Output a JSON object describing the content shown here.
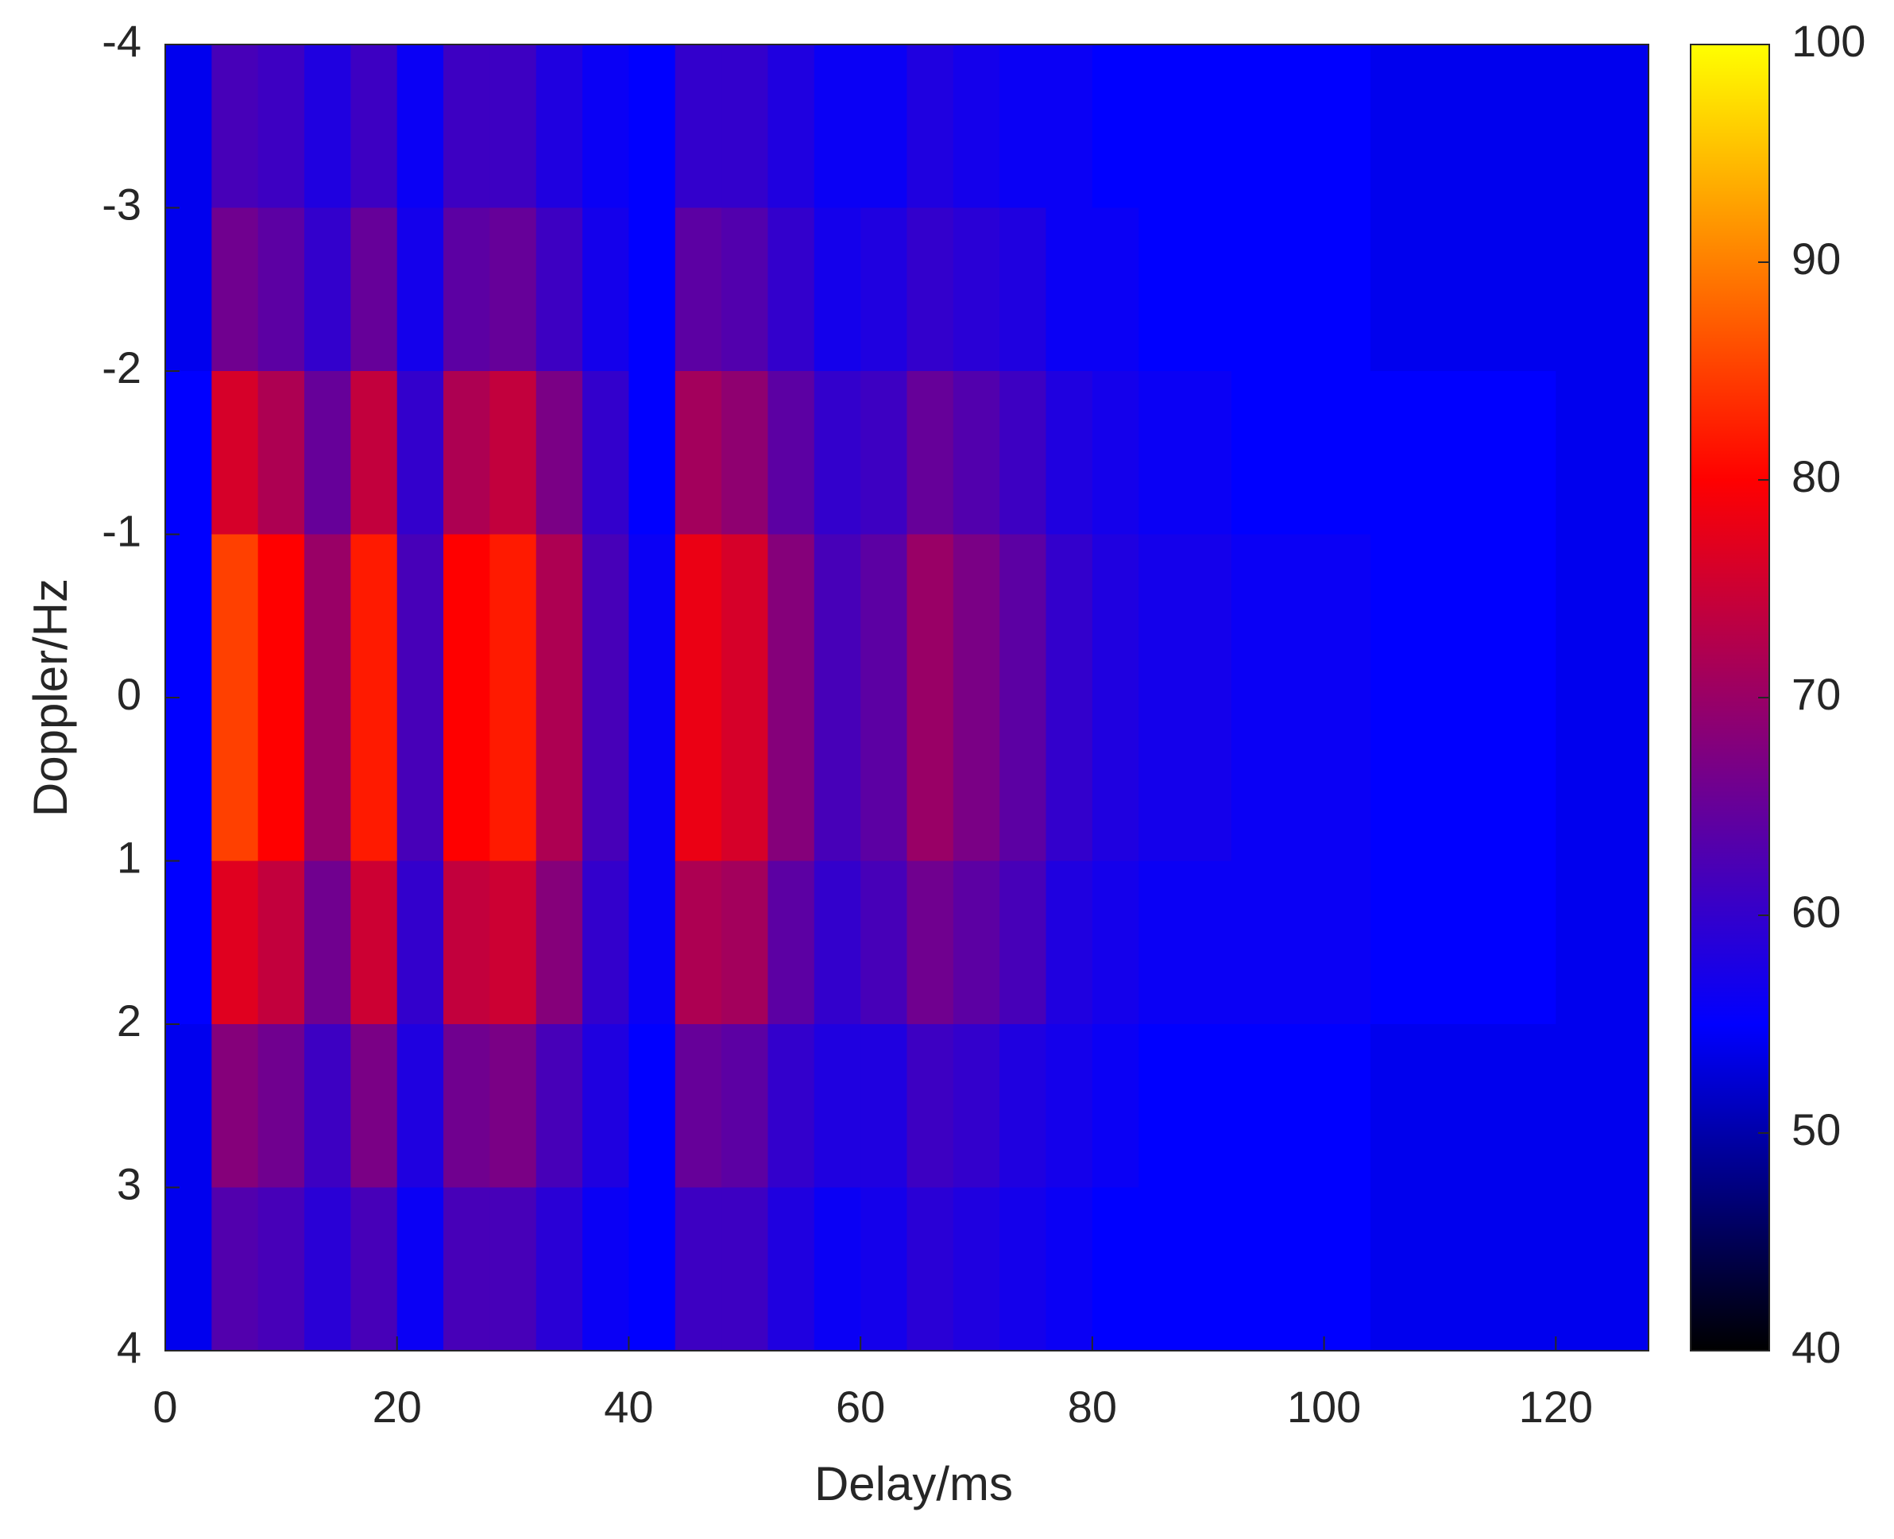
{
  "chart_data": {
    "type": "heatmap",
    "xlabel": "Delay/ms",
    "ylabel": "Doppler/Hz",
    "x_edges": [
      0,
      4,
      8,
      12,
      16,
      20,
      24,
      28,
      32,
      36,
      40,
      44,
      48,
      52,
      56,
      60,
      64,
      68,
      72,
      76,
      80,
      84,
      88,
      92,
      96,
      100,
      104,
      108,
      112,
      116,
      120,
      124,
      128
    ],
    "y_edges": [
      -4,
      -3,
      -2,
      -1,
      0,
      1,
      2,
      3,
      4
    ],
    "z": [
      [
        54,
        54,
        55,
        55,
        55,
        55,
        54,
        54
      ],
      [
        62,
        66,
        76,
        85,
        85,
        77,
        68,
        63
      ],
      [
        61,
        64,
        72,
        80,
        80,
        74,
        66,
        62
      ],
      [
        58,
        60,
        65,
        70,
        70,
        66,
        61,
        59
      ],
      [
        61,
        65,
        74,
        82,
        82,
        75,
        67,
        62
      ],
      [
        56,
        57,
        60,
        62,
        62,
        60,
        58,
        56
      ],
      [
        61,
        64,
        72,
        80,
        80,
        74,
        66,
        62
      ],
      [
        61,
        65,
        74,
        82,
        82,
        75,
        67,
        62
      ],
      [
        58,
        61,
        67,
        72,
        72,
        68,
        62,
        59
      ],
      [
        56,
        57,
        60,
        62,
        62,
        60,
        58,
        56
      ],
      [
        55,
        55,
        55,
        56,
        56,
        56,
        55,
        55
      ],
      [
        60,
        64,
        71,
        78,
        78,
        72,
        65,
        61
      ],
      [
        60,
        63,
        69,
        76,
        76,
        71,
        64,
        61
      ],
      [
        58,
        60,
        64,
        68,
        68,
        64,
        60,
        58
      ],
      [
        56,
        57,
        60,
        62,
        62,
        60,
        58,
        56
      ],
      [
        56,
        58,
        61,
        64,
        64,
        62,
        58,
        57
      ],
      [
        58,
        60,
        65,
        70,
        70,
        66,
        61,
        59
      ],
      [
        57,
        59,
        63,
        67,
        67,
        64,
        60,
        58
      ],
      [
        56,
        58,
        61,
        64,
        64,
        62,
        58,
        57
      ],
      [
        56,
        56,
        58,
        60,
        60,
        58,
        57,
        56
      ],
      [
        55,
        56,
        57,
        58,
        58,
        57,
        56,
        55
      ],
      [
        55,
        55,
        56,
        57,
        57,
        56,
        55,
        55
      ],
      [
        55,
        55,
        56,
        57,
        57,
        56,
        55,
        55
      ],
      [
        55,
        55,
        55,
        56,
        56,
        56,
        55,
        55
      ],
      [
        55,
        55,
        55,
        56,
        56,
        56,
        55,
        55
      ],
      [
        55,
        55,
        55,
        56,
        56,
        56,
        55,
        55
      ],
      [
        54,
        54,
        55,
        55,
        55,
        55,
        54,
        54
      ],
      [
        54,
        54,
        55,
        55,
        55,
        55,
        54,
        54
      ],
      [
        54,
        54,
        55,
        55,
        55,
        55,
        54,
        54
      ],
      [
        54,
        54,
        55,
        55,
        55,
        55,
        54,
        54
      ],
      [
        54,
        54,
        54,
        54,
        54,
        54,
        54,
        54
      ],
      [
        54,
        54,
        54,
        54,
        54,
        54,
        54,
        54
      ]
    ],
    "xlim": [
      0,
      128
    ],
    "xticks": [
      0,
      20,
      40,
      60,
      80,
      100,
      120
    ],
    "ylim": [
      -4,
      4
    ],
    "yticks": [
      -4,
      -3,
      -2,
      -1,
      0,
      1,
      2,
      3,
      4
    ],
    "y_reversed": true,
    "clim": [
      40,
      100
    ],
    "cticks": [
      40,
      50,
      60,
      70,
      80,
      90,
      100
    ],
    "colormap": [
      {
        "value": 40,
        "color": "#000000"
      },
      {
        "value": 55,
        "color": "#0000ff"
      },
      {
        "value": 80,
        "color": "#ff0000"
      },
      {
        "value": 100,
        "color": "#ffff00"
      }
    ]
  }
}
